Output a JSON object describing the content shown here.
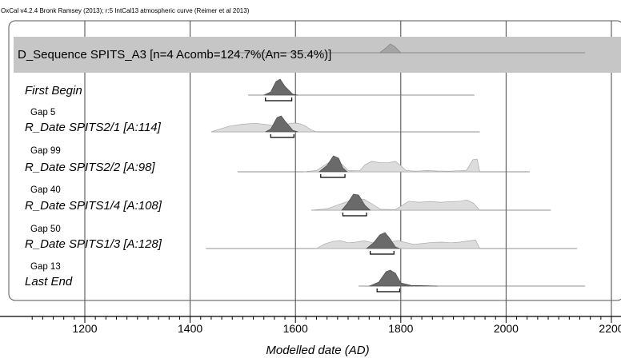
{
  "header": "OxCal v4.2.4 Bronk Ramsey (2013); r:5 IntCal13 atmospheric curve (Reimer et al 2013)",
  "chart_data": {
    "type": "ridgeline",
    "title": "D_Sequence SPITS_A3 [n=4 Acomb=124.7%(An= 35.4%)]",
    "xlabel": "Modelled date (AD)",
    "xlim": [
      1050,
      2215
    ],
    "xticks": [
      1200,
      1400,
      1600,
      1800,
      2000,
      2200
    ],
    "tick_labels": [
      "1200",
      "1400",
      "1600",
      "1800",
      "2000",
      "2200"
    ],
    "grid": true,
    "sequence_peak": 1780,
    "sequence_range": [
      1470,
      2150
    ],
    "rows": [
      {
        "label": "First Begin",
        "range": [
          1510,
          1940
        ],
        "prior": [],
        "posterior": [
          [
            1540,
            0
          ],
          [
            1553,
            0.2
          ],
          [
            1563,
            0.85
          ],
          [
            1571,
            1
          ],
          [
            1580,
            0.55
          ],
          [
            1595,
            0.06
          ],
          [
            1605,
            0
          ]
        ],
        "bracket": [
          1543,
          1593
        ]
      },
      {
        "label": "Gap 5"
      },
      {
        "label": "R_Date SPITS2/1 [A:114]",
        "range": [
          1440,
          1950
        ],
        "prior": [
          [
            1440,
            0
          ],
          [
            1455,
            0.2
          ],
          [
            1475,
            0.45
          ],
          [
            1500,
            0.6
          ],
          [
            1525,
            0.67
          ],
          [
            1550,
            0.55
          ],
          [
            1568,
            0.42
          ],
          [
            1578,
            0.5
          ],
          [
            1592,
            0.68
          ],
          [
            1605,
            0.68
          ],
          [
            1617,
            0.5
          ],
          [
            1630,
            0.15
          ],
          [
            1640,
            0
          ]
        ],
        "posterior": [
          [
            1543,
            0
          ],
          [
            1553,
            0.18
          ],
          [
            1565,
            0.9
          ],
          [
            1573,
            1
          ],
          [
            1582,
            0.6
          ],
          [
            1595,
            0.1
          ],
          [
            1605,
            0
          ]
        ],
        "bracket": [
          1553,
          1597
        ]
      },
      {
        "label": "Gap 99"
      },
      {
        "label": "R_Date SPITS2/2 [A:98]",
        "range": [
          1490,
          2045
        ],
        "prior": [
          [
            1615,
            0
          ],
          [
            1640,
            0.1
          ],
          [
            1662,
            0.7
          ],
          [
            1675,
            0.8
          ],
          [
            1688,
            0.6
          ],
          [
            1700,
            0.1
          ],
          [
            1722,
            0.08
          ],
          [
            1732,
            0.55
          ],
          [
            1745,
            0.82
          ],
          [
            1760,
            0.72
          ],
          [
            1775,
            0.7
          ],
          [
            1790,
            0.82
          ],
          [
            1800,
            0.48
          ],
          [
            1810,
            0.1
          ],
          [
            1830,
            0.05
          ],
          [
            1850,
            0.1
          ],
          [
            1870,
            0.06
          ],
          [
            1890,
            0.05
          ],
          [
            1910,
            0.08
          ],
          [
            1925,
            0.12
          ],
          [
            1937,
            0.95
          ],
          [
            1945,
            1
          ],
          [
            1950,
            0
          ]
        ],
        "posterior": [
          [
            1645,
            0
          ],
          [
            1660,
            0.4
          ],
          [
            1672,
            1
          ],
          [
            1682,
            0.85
          ],
          [
            1690,
            0.25
          ],
          [
            1698,
            0
          ]
        ],
        "bracket": [
          1648,
          1694
        ]
      },
      {
        "label": "Gap 40"
      },
      {
        "label": "R_Date SPITS1/4 [A:108]",
        "range": [
          1630,
          2085
        ],
        "prior": [
          [
            1630,
            0
          ],
          [
            1660,
            0.1
          ],
          [
            1680,
            0.4
          ],
          [
            1700,
            0.7
          ],
          [
            1715,
            0.9
          ],
          [
            1730,
            0.85
          ],
          [
            1745,
            0.5
          ],
          [
            1762,
            0.06
          ],
          [
            1790,
            0.05
          ],
          [
            1800,
            0.3
          ],
          [
            1815,
            0.7
          ],
          [
            1835,
            0.62
          ],
          [
            1855,
            0.68
          ],
          [
            1875,
            0.62
          ],
          [
            1895,
            0.66
          ],
          [
            1912,
            0.7
          ],
          [
            1925,
            0.8
          ],
          [
            1938,
            0.55
          ],
          [
            1950,
            0
          ]
        ],
        "posterior": [
          [
            1688,
            0
          ],
          [
            1698,
            0.4
          ],
          [
            1710,
            1
          ],
          [
            1720,
            0.95
          ],
          [
            1732,
            0.3
          ],
          [
            1742,
            0
          ]
        ],
        "bracket": [
          1690,
          1735
        ]
      },
      {
        "label": "Gap 50"
      },
      {
        "label": "R_Date SPITS1/3 [A:128]",
        "range": [
          1430,
          2135
        ],
        "prior": [
          [
            1640,
            0
          ],
          [
            1655,
            0.35
          ],
          [
            1670,
            0.55
          ],
          [
            1685,
            0.62
          ],
          [
            1700,
            0.45
          ],
          [
            1715,
            0.5
          ],
          [
            1730,
            0.6
          ],
          [
            1745,
            0.48
          ],
          [
            1762,
            0.55
          ],
          [
            1780,
            0.52
          ],
          [
            1795,
            0.62
          ],
          [
            1812,
            0.45
          ],
          [
            1825,
            0.32
          ],
          [
            1842,
            0.4
          ],
          [
            1860,
            0.48
          ],
          [
            1878,
            0.5
          ],
          [
            1895,
            0.45
          ],
          [
            1912,
            0.5
          ],
          [
            1930,
            0.6
          ],
          [
            1942,
            0.68
          ],
          [
            1950,
            0
          ]
        ],
        "posterior": [
          [
            1735,
            0
          ],
          [
            1748,
            0.35
          ],
          [
            1760,
            0.85
          ],
          [
            1770,
            1
          ],
          [
            1780,
            0.6
          ],
          [
            1790,
            0.1
          ],
          [
            1798,
            0
          ]
        ],
        "bracket": [
          1742,
          1787
        ]
      },
      {
        "label": "Gap 13"
      },
      {
        "label": "Last End",
        "range": [
          1720,
          2150
        ],
        "prior": [],
        "posterior": [
          [
            1740,
            0
          ],
          [
            1758,
            0.25
          ],
          [
            1772,
            0.9
          ],
          [
            1780,
            1
          ],
          [
            1790,
            0.8
          ],
          [
            1800,
            0.2
          ],
          [
            1820,
            0.04
          ],
          [
            1850,
            0.02
          ],
          [
            1870,
            0
          ]
        ],
        "bracket": [
          1755,
          1798
        ]
      }
    ]
  }
}
